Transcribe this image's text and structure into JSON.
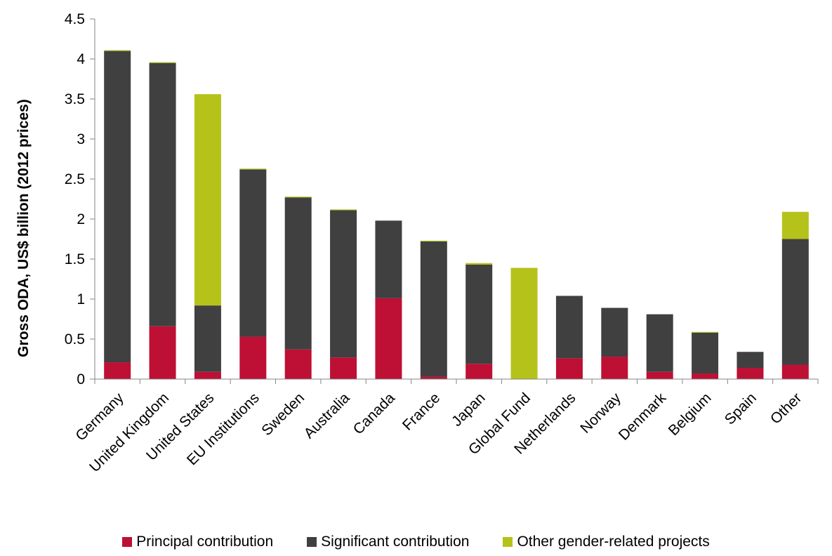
{
  "chart_data": {
    "type": "bar",
    "stacked": true,
    "ylabel": "Gross ODA, US$ billion (2012 prices)",
    "ylim": [
      0,
      4.5
    ],
    "yticks": [
      "0",
      "0.5",
      "1",
      "1.5",
      "2",
      "2.5",
      "3",
      "3.5",
      "4",
      "4.5"
    ],
    "categories": [
      "Germany",
      "United Kingdom",
      "United States",
      "EU Institutions",
      "Sweden",
      "Australia",
      "Canada",
      "France",
      "Japan",
      "Global Fund",
      "Netherlands",
      "Norway",
      "Denmark",
      "Belgium",
      "Spain",
      "Other"
    ],
    "series": [
      {
        "name": "Principal contribution",
        "color": "#be0f34",
        "values": [
          0.21,
          0.66,
          0.09,
          0.53,
          0.37,
          0.27,
          1.01,
          0.03,
          0.19,
          0.0,
          0.26,
          0.28,
          0.09,
          0.07,
          0.14,
          0.18
        ]
      },
      {
        "name": "Significant contribution",
        "color": "#404040",
        "values": [
          3.89,
          3.29,
          0.83,
          2.09,
          1.9,
          1.84,
          0.97,
          1.69,
          1.24,
          0.0,
          0.78,
          0.61,
          0.72,
          0.51,
          0.2,
          1.57
        ]
      },
      {
        "name": "Other gender-related projects",
        "color": "#b5c21a",
        "values": [
          0.01,
          0.01,
          2.64,
          0.01,
          0.01,
          0.01,
          0.0,
          0.01,
          0.02,
          1.39,
          0.0,
          0.0,
          0.0,
          0.01,
          0.0,
          0.34
        ]
      }
    ],
    "grid": false,
    "legend": "bottom"
  }
}
